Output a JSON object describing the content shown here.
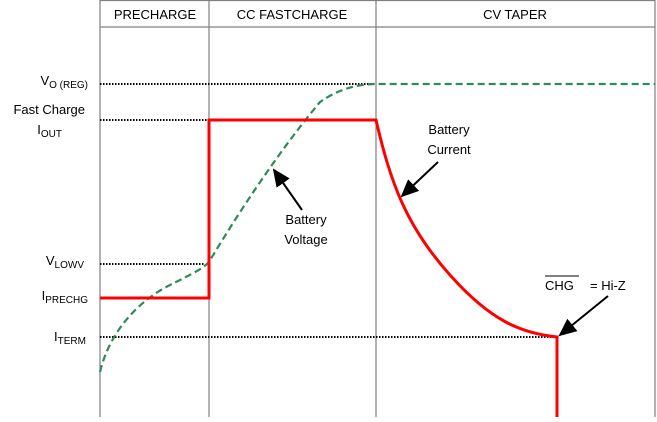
{
  "phases": [
    "PRECHARGE",
    "CC FASTCHARGE",
    "CV TAPER"
  ],
  "levels": {
    "vo_reg": {
      "main": "V",
      "sub": "O (REG)"
    },
    "fast_charge": "Fast Charge",
    "iout": {
      "main": "I",
      "sub": "OUT"
    },
    "vlowv": {
      "main": "V",
      "sub": "LOWV"
    },
    "iprechg": {
      "main": "I",
      "sub": "PRECHG"
    },
    "iterm": {
      "main": "I",
      "sub": "TERM"
    }
  },
  "annotations": {
    "battery_voltage": [
      "Battery",
      "Voltage"
    ],
    "battery_current": [
      "Battery",
      "Current"
    ],
    "chg_signal": "CHG",
    "chg_state": "= Hi-Z"
  },
  "colors": {
    "current": "#ff0000",
    "voltage": "#2e8b57",
    "frame": "#808080"
  }
}
